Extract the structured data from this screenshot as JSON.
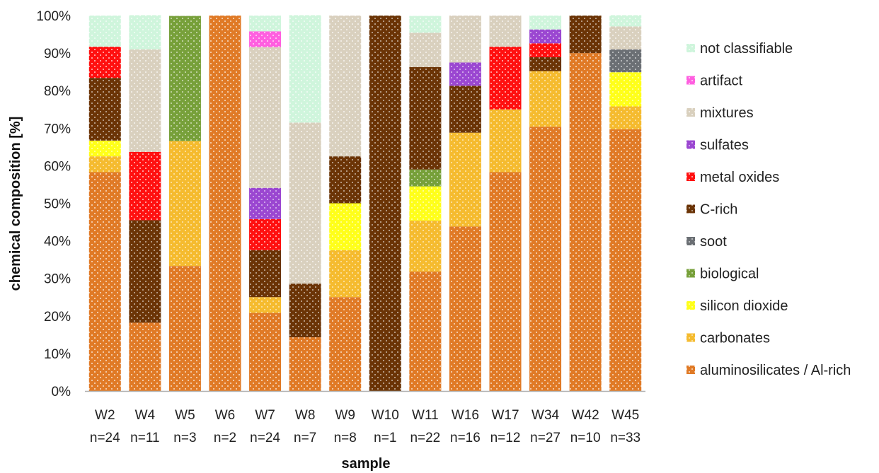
{
  "chart_data": {
    "type": "bar",
    "stacked": true,
    "normalized": true,
    "xlabel": "sample",
    "ylabel": "chemical composition [%]",
    "ylim": [
      0,
      100
    ],
    "yticks": [
      "0%",
      "10%",
      "20%",
      "30%",
      "40%",
      "50%",
      "60%",
      "70%",
      "80%",
      "90%",
      "100%"
    ],
    "categories": [
      "W2",
      "W4",
      "W5",
      "W6",
      "W7",
      "W8",
      "W9",
      "W10",
      "W11",
      "W16",
      "W17",
      "W34",
      "W42",
      "W45"
    ],
    "category_counts": [
      "n=24",
      "n=11",
      "n=3",
      "n=2",
      "n=24",
      "n=7",
      "n=8",
      "n=1",
      "n=22",
      "n=16",
      "n=12",
      "n=27",
      "n=10",
      "n=33"
    ],
    "legend_position": "right",
    "grid": false,
    "series": [
      {
        "name": "aluminosilicates / Al-rich",
        "color": "#e07a26",
        "values": [
          58.3,
          18.2,
          33.3,
          100,
          20.8,
          14.3,
          25.0,
          0,
          31.8,
          43.8,
          58.3,
          70.4,
          90.0,
          69.7
        ]
      },
      {
        "name": "carbonates",
        "color": "#f5bb2f",
        "values": [
          4.2,
          0,
          33.3,
          0,
          4.2,
          0,
          12.5,
          0,
          13.6,
          25.0,
          16.7,
          14.8,
          0,
          6.1
        ]
      },
      {
        "name": "silicon dioxide",
        "color": "#ffff1a",
        "values": [
          4.2,
          0,
          0,
          0,
          0,
          0,
          12.5,
          0,
          9.1,
          0,
          0,
          0,
          0,
          9.1
        ]
      },
      {
        "name": "biological",
        "color": "#77a03a",
        "values": [
          0,
          0,
          33.3,
          0,
          0,
          0,
          0,
          0,
          4.5,
          0,
          0,
          0,
          0,
          0
        ]
      },
      {
        "name": "soot",
        "color": "#6b6f74",
        "values": [
          0,
          0,
          0,
          0,
          0,
          0,
          0,
          0,
          0,
          0,
          0,
          0,
          0,
          6.1
        ]
      },
      {
        "name": "C-rich",
        "color": "#6b3406",
        "values": [
          16.7,
          27.3,
          0,
          0,
          12.5,
          14.3,
          12.5,
          100,
          27.3,
          12.5,
          0,
          3.7,
          10.0,
          0
        ]
      },
      {
        "name": "metal oxides",
        "color": "#ff1010",
        "values": [
          8.3,
          18.2,
          0,
          0,
          8.3,
          0,
          0,
          0,
          0,
          0,
          16.7,
          3.7,
          0,
          0
        ]
      },
      {
        "name": "sulfates",
        "color": "#9b47d1",
        "values": [
          0,
          0,
          0,
          0,
          8.3,
          0,
          0,
          0,
          0,
          6.2,
          0,
          3.7,
          0,
          0
        ]
      },
      {
        "name": "mixtures",
        "color": "#d9d0be",
        "values": [
          0,
          27.3,
          0,
          0,
          37.5,
          42.9,
          37.5,
          0,
          9.1,
          12.5,
          8.3,
          0,
          0,
          6.1
        ]
      },
      {
        "name": "artifact",
        "color": "#ff5fe0",
        "values": [
          0,
          0,
          0,
          0,
          4.2,
          0,
          0,
          0,
          0,
          0,
          0,
          0,
          0,
          0
        ]
      },
      {
        "name": "not classifiable",
        "color": "#cff5dc",
        "values": [
          8.3,
          9.1,
          0,
          0,
          4.2,
          28.6,
          0,
          0,
          4.5,
          0,
          0,
          3.7,
          0,
          3.0
        ]
      }
    ],
    "legend_order": [
      "not classifiable",
      "artifact",
      "mixtures",
      "sulfates",
      "metal oxides",
      "C-rich",
      "soot",
      "biological",
      "silicon dioxide",
      "carbonates",
      "aluminosilicates / Al-rich"
    ]
  }
}
